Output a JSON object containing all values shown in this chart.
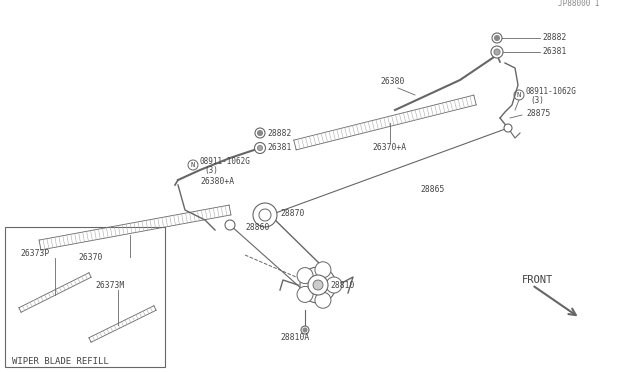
{
  "bg_color": "#ffffff",
  "line_color": "#666666",
  "text_color": "#444444",
  "fig_width": 6.4,
  "fig_height": 3.72,
  "dpi": 100,
  "inset_title": "WIPER BLADE REFILL",
  "footer_text": "JP88000 I",
  "front_label": "FRONT"
}
